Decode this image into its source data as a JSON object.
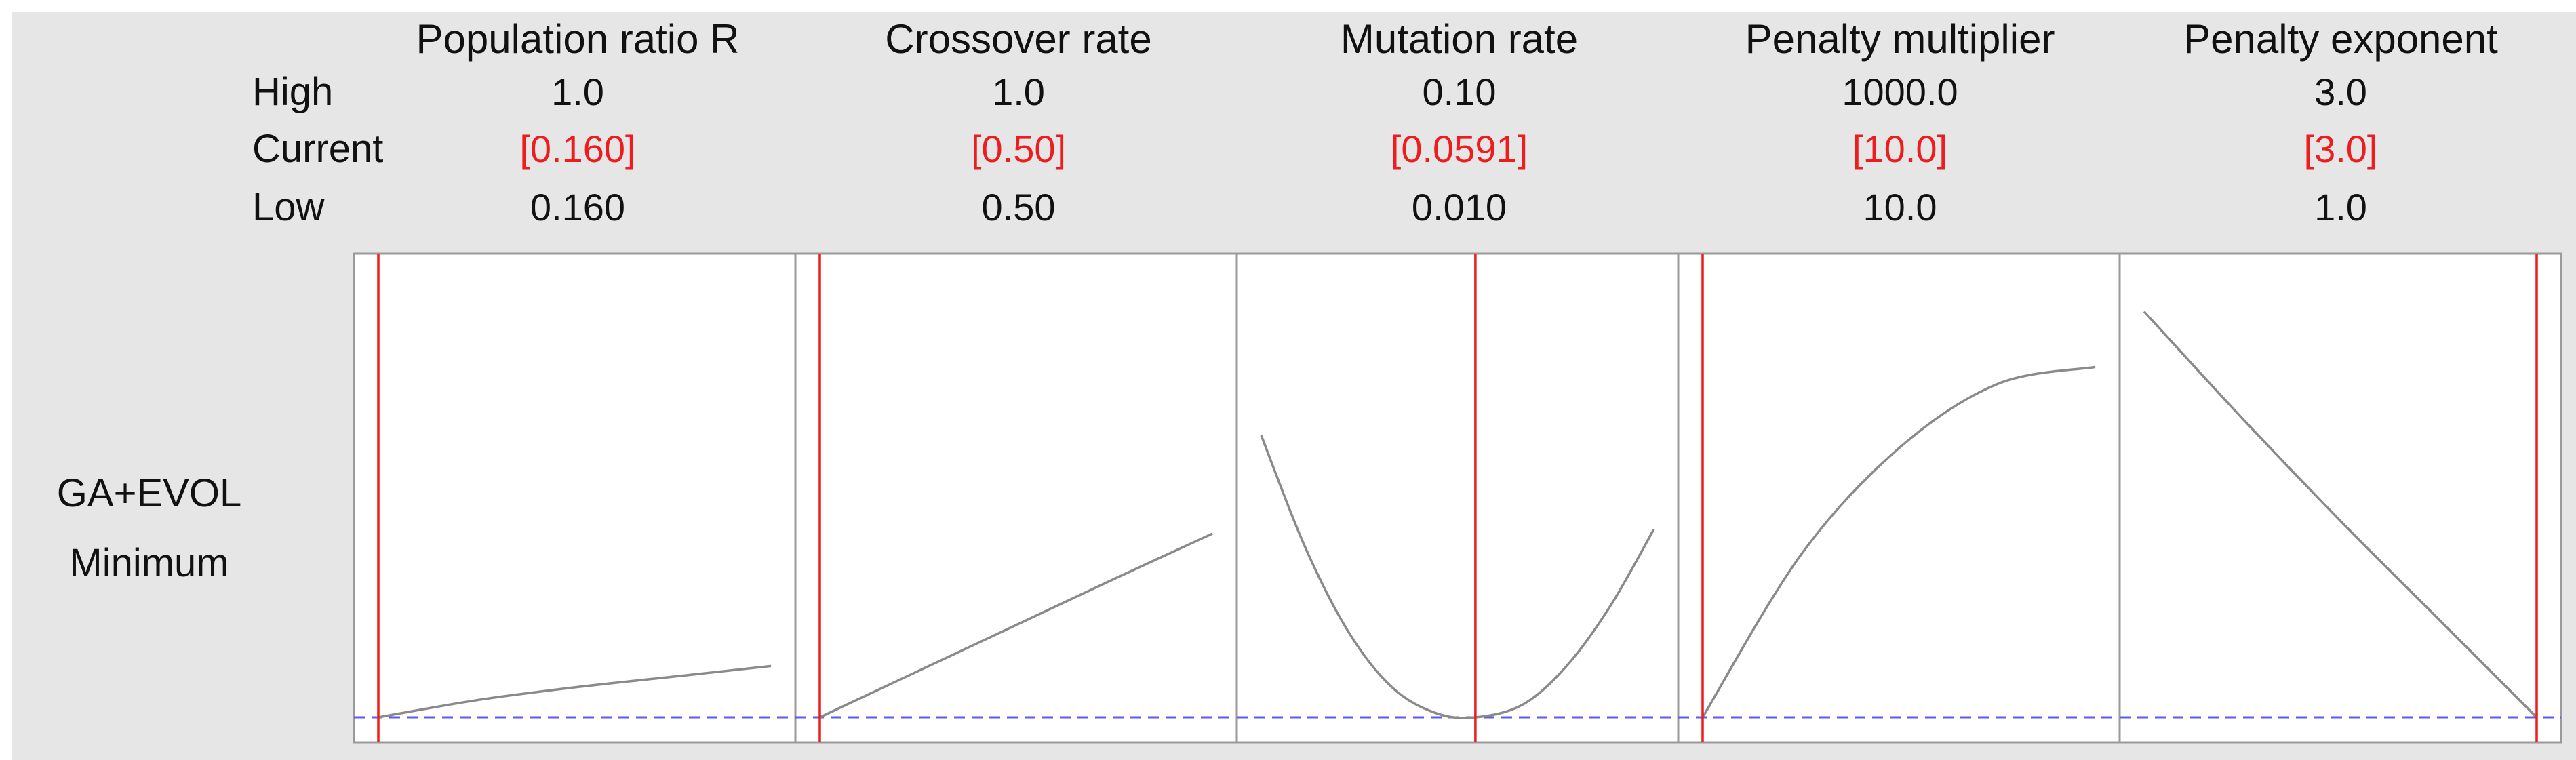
{
  "rows": {
    "high": "High",
    "current": "Current",
    "low": "Low"
  },
  "response": {
    "name": "GA+EVOL",
    "goal": "Minimum"
  },
  "factors": [
    {
      "name": "Population ratio R",
      "high": "1.0",
      "current": "[0.160]",
      "low": "0.160"
    },
    {
      "name": "Crossover rate",
      "high": "1.0",
      "current": "[0.50]",
      "low": "0.50"
    },
    {
      "name": "Mutation rate",
      "high": "0.10",
      "current": "[0.0591]",
      "low": "0.010"
    },
    {
      "name": "Penalty multiplier",
      "high": "1000.0",
      "current": "[10.0]",
      "low": "10.0"
    },
    {
      "name": "Penalty exponent",
      "high": "3.0",
      "current": "[3.0]",
      "low": "1.0"
    }
  ],
  "colors": {
    "curve": "#8a8a8a",
    "current_line": "#ee1c1c",
    "reference_line": "#5b5bf0",
    "current_text": "#ee1c1c",
    "panel_border": "#9a9a9a"
  },
  "chart_data": {
    "type": "line",
    "title": "",
    "ylim": [
      0,
      1
    ],
    "reference_y": 0,
    "panels": [
      {
        "factor": "Population ratio R",
        "xlim": [
          0.16,
          1.0
        ],
        "current_x": 0.16,
        "x": [
          0.16,
          0.37,
          0.58,
          0.79,
          1.0
        ],
        "y": [
          0.0,
          0.04,
          0.07,
          0.095,
          0.12
        ]
      },
      {
        "factor": "Crossover rate",
        "xlim": [
          0.5,
          1.0
        ],
        "current_x": 0.5,
        "x": [
          0.5,
          0.625,
          0.75,
          0.875,
          1.0
        ],
        "y": [
          0.0,
          0.108,
          0.216,
          0.324,
          0.43
        ]
      },
      {
        "factor": "Mutation rate",
        "xlim": [
          0.01,
          0.1
        ],
        "current_x": 0.0591,
        "x": [
          0.01,
          0.02,
          0.03,
          0.04,
          0.05,
          0.0591,
          0.07,
          0.08,
          0.09,
          0.1
        ],
        "y": [
          0.66,
          0.4,
          0.2,
          0.07,
          0.01,
          0.0,
          0.03,
          0.12,
          0.26,
          0.44
        ]
      },
      {
        "factor": "Penalty multiplier",
        "xlim": [
          10,
          1000
        ],
        "current_x": 10,
        "x": [
          10,
          257.5,
          505,
          752.5,
          1000
        ],
        "y": [
          0.0,
          0.38,
          0.63,
          0.78,
          0.82
        ]
      },
      {
        "factor": "Penalty exponent",
        "xlim": [
          1.0,
          3.0
        ],
        "current_x": 3.0,
        "x": [
          1.0,
          1.5,
          2.0,
          2.5,
          3.0
        ],
        "y": [
          0.95,
          0.7,
          0.46,
          0.23,
          0.0
        ]
      }
    ]
  }
}
